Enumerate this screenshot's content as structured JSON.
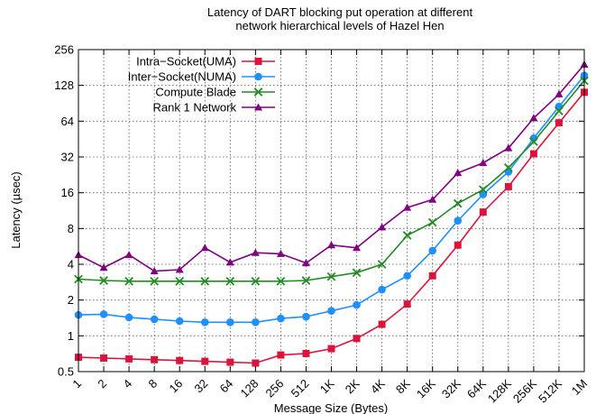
{
  "chart_data": {
    "type": "line",
    "title_lines": [
      "Latency of DART blocking put operation at different",
      "network hierarchical levels of Hazel Hen"
    ],
    "xlabel": "Message Size (Bytes)",
    "ylabel": "Latency (µsec)",
    "categories": [
      "1",
      "2",
      "4",
      "8",
      "16",
      "32",
      "64",
      "128",
      "256",
      "512",
      "1K",
      "2K",
      "4K",
      "8K",
      "16K",
      "32K",
      "64K",
      "128K",
      "256K",
      "512K",
      "1M"
    ],
    "yscale": "log2",
    "ylim": [
      0.5,
      256
    ],
    "yticks": [
      0.5,
      1,
      2,
      4,
      8,
      16,
      32,
      64,
      128,
      256
    ],
    "ytick_labels": [
      "0.5",
      "1",
      "2",
      "4",
      "8",
      "16",
      "32",
      "64",
      "128",
      "256"
    ],
    "grid": true,
    "grid_style": "dotted",
    "legend_position": "top-left",
    "series": [
      {
        "name": "Intra−Socket(UMA)",
        "color": "#dc143c",
        "marker": "square",
        "values": [
          0.66,
          0.65,
          0.64,
          0.63,
          0.62,
          0.61,
          0.6,
          0.59,
          0.69,
          0.71,
          0.78,
          0.95,
          1.25,
          1.85,
          3.2,
          5.8,
          11.0,
          18.0,
          34.0,
          62.0,
          112.0
        ]
      },
      {
        "name": "Inter−Socket(NUMA)",
        "color": "#1e90ff",
        "marker": "circle",
        "values": [
          1.5,
          1.52,
          1.43,
          1.38,
          1.33,
          1.3,
          1.3,
          1.3,
          1.4,
          1.45,
          1.62,
          1.82,
          2.45,
          3.2,
          5.2,
          9.3,
          15.5,
          24.0,
          46.0,
          85.0,
          155.0
        ]
      },
      {
        "name": "Compute Blade",
        "color": "#228b22",
        "marker": "x",
        "values": [
          3.0,
          2.92,
          2.88,
          2.88,
          2.88,
          2.88,
          2.88,
          2.88,
          2.88,
          2.92,
          3.15,
          3.4,
          4.0,
          7.0,
          9.0,
          13.0,
          17.0,
          26.0,
          43.0,
          78.0,
          140.0
        ]
      },
      {
        "name": "Rank 1 Network",
        "color": "#800080",
        "marker": "triangle",
        "values": [
          4.8,
          3.75,
          4.8,
          3.5,
          3.6,
          5.5,
          4.15,
          5.0,
          4.9,
          4.1,
          5.8,
          5.5,
          8.2,
          12.0,
          14.0,
          23.5,
          28.5,
          38.0,
          68.0,
          108.0,
          192.0
        ]
      }
    ]
  }
}
